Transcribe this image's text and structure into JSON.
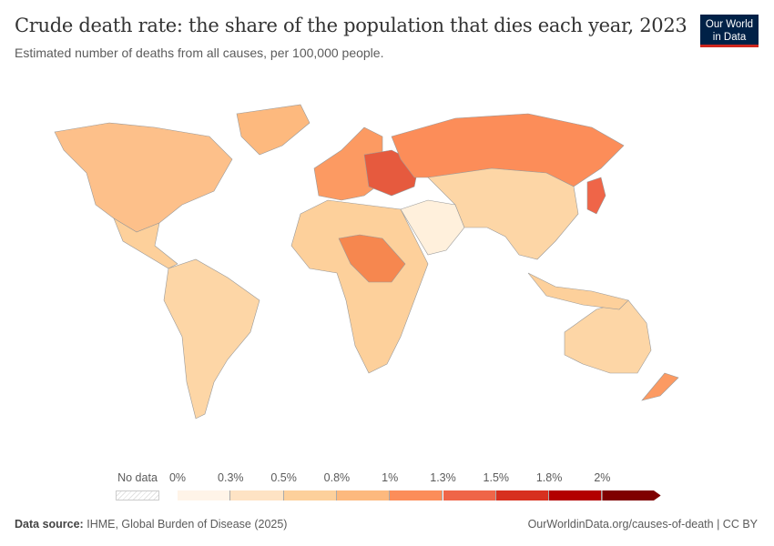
{
  "header": {
    "title": "Crude death rate: the share of the population that dies each year, 2023",
    "subtitle": "Estimated number of deaths from all causes, per 100,000 people.",
    "logo_line1": "Our World",
    "logo_line2": "in Data"
  },
  "legend": {
    "no_data_label": "No data",
    "ticks": [
      "0%",
      "0.3%",
      "0.5%",
      "0.8%",
      "1%",
      "1.3%",
      "1.5%",
      "1.8%",
      "2%"
    ],
    "colors": [
      "#fff4e8",
      "#fee3c4",
      "#fdd09b",
      "#fdb97e",
      "#fc8d59",
      "#ef6548",
      "#d7301f",
      "#b30000",
      "#7f0000"
    ]
  },
  "map_regions": [
    {
      "name": "north-america",
      "color": "#fdc08a"
    },
    {
      "name": "greenland",
      "color": "#fdb97e"
    },
    {
      "name": "central-america",
      "color": "#fdd09b"
    },
    {
      "name": "south-america",
      "color": "#fdd6a6"
    },
    {
      "name": "africa",
      "color": "#fdd09b"
    },
    {
      "name": "central-africa",
      "color": "#f6874f"
    },
    {
      "name": "europe",
      "color": "#fc9a62"
    },
    {
      "name": "eastern-europe",
      "color": "#e65a3e"
    },
    {
      "name": "russia",
      "color": "#fc8d59"
    },
    {
      "name": "middle-east",
      "color": "#fff0dc"
    },
    {
      "name": "asia",
      "color": "#fdd6a6"
    },
    {
      "name": "japan",
      "color": "#ef6548"
    },
    {
      "name": "australia",
      "color": "#fdd6a6"
    },
    {
      "name": "new-zealand",
      "color": "#fc9a62"
    },
    {
      "name": "indonesia",
      "color": "#fdd09b"
    }
  ],
  "footer": {
    "source_label": "Data source:",
    "source": "IHME, Global Burden of Disease (2025)",
    "link": "OurWorldinData.org/causes-of-death | CC BY"
  }
}
